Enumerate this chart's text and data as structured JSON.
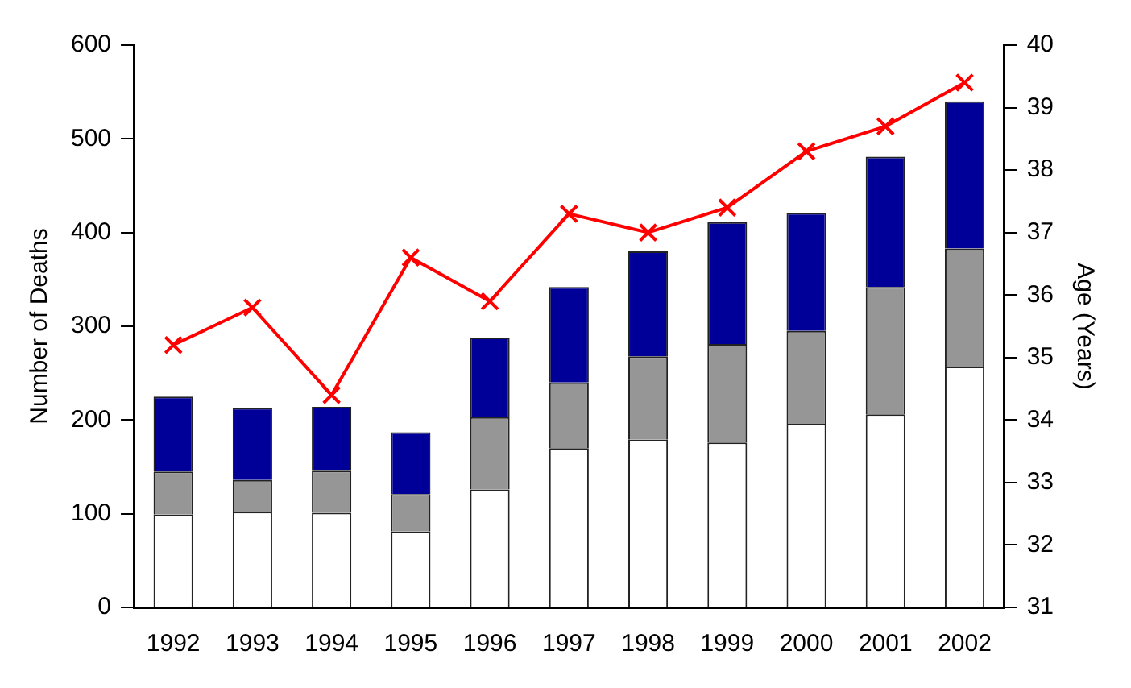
{
  "chart_data": {
    "type": "bar",
    "stacked": true,
    "ylabel": "Number of Deaths",
    "y2label": "Age (Years)",
    "categories": [
      "1992",
      "1993",
      "1994",
      "1995",
      "1996",
      "1997",
      "1998",
      "1999",
      "2000",
      "2001",
      "2002"
    ],
    "series": [
      {
        "color": "#ffffff",
        "values": [
          99,
          102,
          101,
          81,
          126,
          170,
          179,
          176,
          196,
          206,
          257
        ]
      },
      {
        "color": "#969696",
        "values": [
          46,
          34,
          45,
          40,
          77,
          70,
          89,
          105,
          99,
          136,
          126
        ]
      },
      {
        "color": "#000099",
        "values": [
          80,
          77,
          68,
          66,
          85,
          102,
          112,
          130,
          126,
          139,
          157
        ]
      },
      {
        "type": "line",
        "axis": "y2",
        "color": "#ff0000",
        "marker": "cross",
        "values": [
          35.2,
          35.8,
          34.4,
          36.6,
          35.9,
          37.3,
          37.0,
          37.4,
          38.3,
          38.7,
          39.4
        ]
      }
    ],
    "ylim": [
      0,
      600
    ],
    "yticks": [
      0,
      100,
      200,
      300,
      400,
      500,
      600
    ],
    "y2lim": [
      31,
      40
    ],
    "y2ticks": [
      31,
      32,
      33,
      34,
      35,
      36,
      37,
      38,
      39,
      40
    ],
    "grid": false,
    "legend": false
  }
}
